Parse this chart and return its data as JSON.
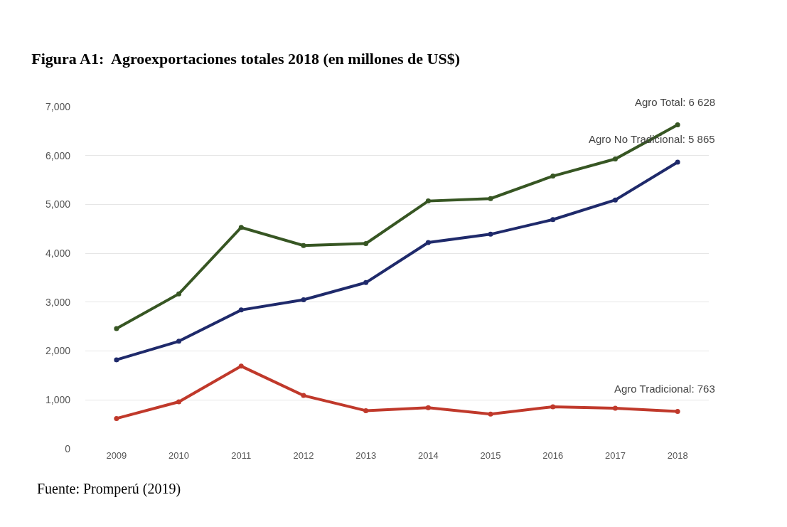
{
  "chart_data": {
    "type": "line",
    "title": "Figura A1:  Agroexportaciones totales 2018 (en millones de US$)",
    "categories": [
      "2009",
      "2010",
      "2011",
      "2012",
      "2013",
      "2014",
      "2015",
      "2016",
      "2017",
      "2018"
    ],
    "series": [
      {
        "color": "#375623",
        "values": [
          2460,
          3170,
          4530,
          4160,
          4200,
          5070,
          5120,
          5580,
          5930,
          6628
        ]
      },
      {
        "color": "#1f2a6b",
        "values": [
          1820,
          2200,
          2840,
          3050,
          3400,
          4220,
          4390,
          4690,
          5090,
          5865
        ]
      },
      {
        "color": "#c0392b",
        "values": [
          620,
          960,
          1690,
          1090,
          780,
          840,
          710,
          860,
          830,
          763
        ]
      }
    ],
    "ylim": [
      0,
      7000
    ],
    "yticks": [
      0,
      {
        "value": 1000,
        "label": "1,000"
      },
      {
        "value": 2000,
        "label": "2,000"
      },
      {
        "value": 3000,
        "label": "3,000"
      },
      {
        "value": 4000,
        "label": "4,000"
      },
      {
        "value": 5000,
        "label": "5,000"
      },
      {
        "value": 6000,
        "label": "6,000"
      },
      {
        "value": 7000,
        "label": "7,000"
      }
    ],
    "grid": "y",
    "marker": "circle",
    "line_style": "solid",
    "annotations": [
      {
        "text": "Agro Total: 6 628",
        "x": "2018",
        "y": 6628
      },
      {
        "text": "Agro No Tradicional: 5 865",
        "x": "2018",
        "y": 5865
      },
      {
        "text": "Agro Tradicional: 763",
        "x": "2018",
        "y": 763
      },
      "Fuente: Promperú (2019)"
    ]
  }
}
